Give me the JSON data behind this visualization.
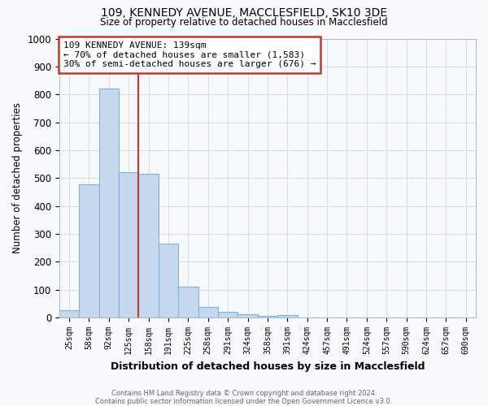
{
  "title_line1": "109, KENNEDY AVENUE, MACCLESFIELD, SK10 3DE",
  "title_line2": "Size of property relative to detached houses in Macclesfield",
  "xlabel": "Distribution of detached houses by size in Macclesfield",
  "ylabel": "Number of detached properties",
  "footnote": "Contains HM Land Registry data © Crown copyright and database right 2024.\nContains public sector information licensed under the Open Government Licence v3.0.",
  "bar_labels": [
    "25sqm",
    "58sqm",
    "92sqm",
    "125sqm",
    "158sqm",
    "191sqm",
    "225sqm",
    "258sqm",
    "291sqm",
    "324sqm",
    "358sqm",
    "391sqm",
    "424sqm",
    "457sqm",
    "491sqm",
    "524sqm",
    "557sqm",
    "590sqm",
    "624sqm",
    "657sqm",
    "690sqm"
  ],
  "bar_values": [
    28,
    478,
    820,
    520,
    515,
    265,
    112,
    38,
    22,
    12,
    7,
    8,
    0,
    0,
    0,
    0,
    0,
    0,
    0,
    0,
    0
  ],
  "bar_color": "#c5d8ee",
  "bar_edge_color": "#7fb3d9",
  "ylim": [
    0,
    1000
  ],
  "yticks": [
    0,
    100,
    200,
    300,
    400,
    500,
    600,
    700,
    800,
    900,
    1000
  ],
  "vline_x": 3.5,
  "vline_color": "#c0392b",
  "annotation_text": "109 KENNEDY AVENUE: 139sqm\n← 70% of detached houses are smaller (1,583)\n30% of semi-detached houses are larger (676) →",
  "annotation_box_color": "#ffffff",
  "annotation_box_edge": "#c0392b",
  "grid_color": "#d0d8e0",
  "background_color": "#f7f9fc"
}
